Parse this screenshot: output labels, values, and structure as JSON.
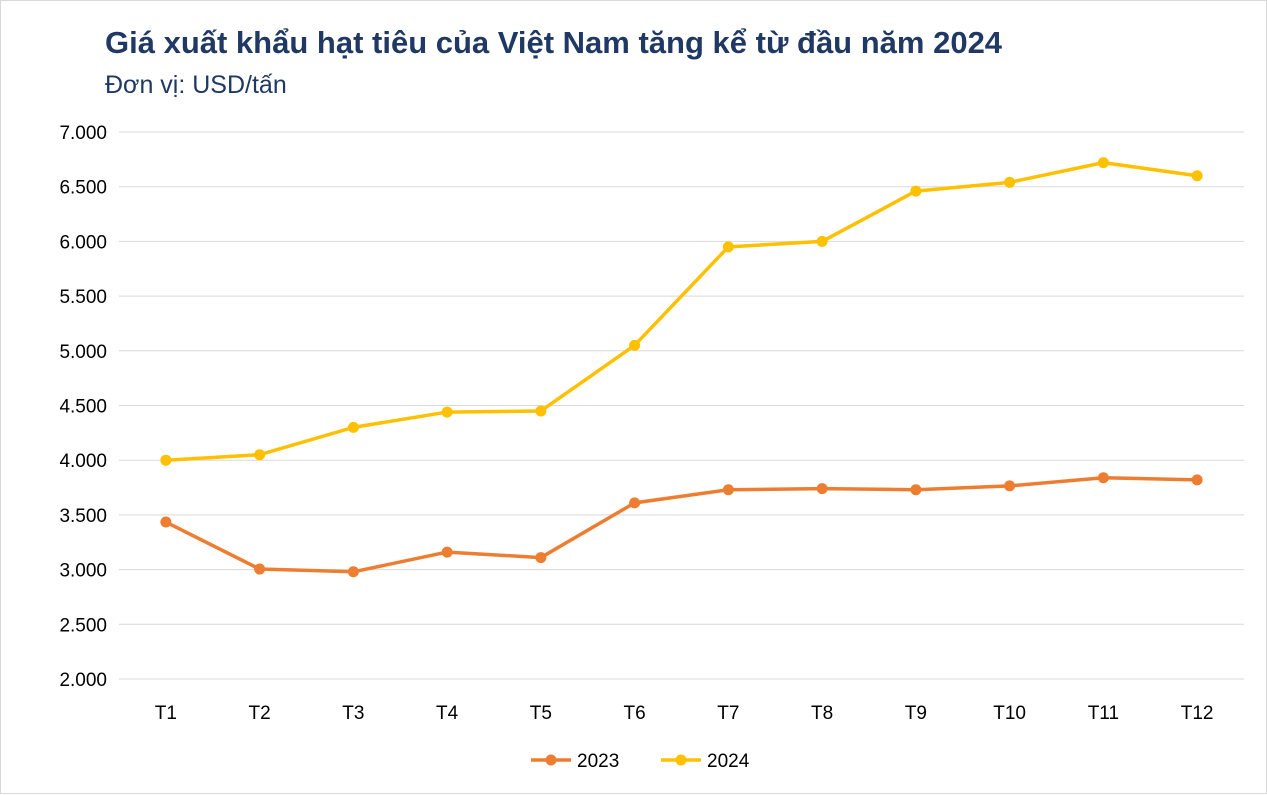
{
  "chart_data": {
    "type": "line",
    "title": "Giá xuất khẩu hạt tiêu của Việt Nam tăng kể từ đầu năm 2024",
    "subtitle": "Đơn vị: USD/tấn",
    "categories": [
      "T1",
      "T2",
      "T3",
      "T4",
      "T5",
      "T6",
      "T7",
      "T8",
      "T9",
      "T10",
      "T11",
      "T12"
    ],
    "ylim": [
      2000,
      7000
    ],
    "yticks": [
      2000,
      2500,
      3000,
      3500,
      4000,
      4500,
      5000,
      5500,
      6000,
      6500,
      7000
    ],
    "ytick_labels": [
      "2.000",
      "2.500",
      "3.000",
      "3.500",
      "4.000",
      "4.500",
      "5.000",
      "5.500",
      "6.000",
      "6.500",
      "7.000"
    ],
    "grid": true,
    "legend_placement": "bottom",
    "series": [
      {
        "name": "2023",
        "color": "#ed7d31",
        "values": [
          3435,
          3005,
          2980,
          3160,
          3110,
          3610,
          3730,
          3740,
          3730,
          3765,
          3840,
          3820
        ]
      },
      {
        "name": "2024",
        "color": "#ffc000",
        "values": [
          4000,
          4050,
          4300,
          4440,
          4450,
          5050,
          5950,
          6000,
          6460,
          6540,
          6720,
          6600
        ]
      }
    ]
  }
}
